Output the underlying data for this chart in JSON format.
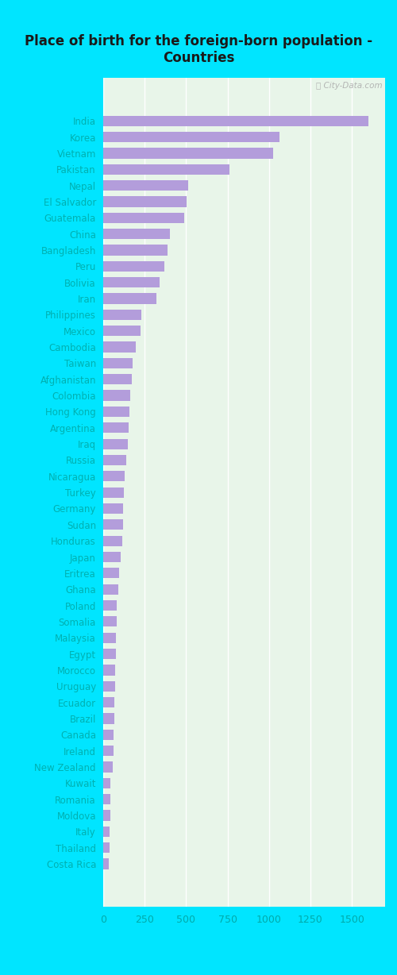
{
  "title": "Place of birth for the foreign-born population -\nCountries",
  "categories": [
    "India",
    "Korea",
    "Vietnam",
    "Pakistan",
    "Nepal",
    "El Salvador",
    "Guatemala",
    "China",
    "Bangladesh",
    "Peru",
    "Bolivia",
    "Iran",
    "Philippines",
    "Mexico",
    "Cambodia",
    "Taiwan",
    "Afghanistan",
    "Colombia",
    "Hong Kong",
    "Argentina",
    "Iraq",
    "Russia",
    "Nicaragua",
    "Turkey",
    "Germany",
    "Sudan",
    "Honduras",
    "Japan",
    "Eritrea",
    "Ghana",
    "Poland",
    "Somalia",
    "Malaysia",
    "Egypt",
    "Morocco",
    "Uruguay",
    "Ecuador",
    "Brazil",
    "Canada",
    "Ireland",
    "New Zealand",
    "Kuwait",
    "Romania",
    "Moldova",
    "Italy",
    "Thailand",
    "Costa Rica"
  ],
  "values": [
    1600,
    1065,
    1025,
    760,
    510,
    505,
    490,
    400,
    390,
    370,
    340,
    320,
    230,
    225,
    195,
    175,
    170,
    165,
    160,
    155,
    150,
    140,
    130,
    125,
    120,
    118,
    115,
    105,
    95,
    90,
    82,
    80,
    78,
    75,
    72,
    70,
    68,
    65,
    62,
    60,
    58,
    45,
    43,
    42,
    40,
    38,
    35
  ],
  "bar_color": "#b39ddb",
  "plot_bg_color": "#e8f5e9",
  "outer_bg_color": "#00e5ff",
  "label_color": "#00b0b0",
  "title_color": "#1a1a1a",
  "xtick_color": "#00aaaa",
  "xlim": [
    0,
    1700
  ],
  "xticks": [
    0,
    250,
    500,
    750,
    1000,
    1250,
    1500
  ],
  "title_fontsize": 12,
  "bar_label_fontsize": 8.5,
  "xtick_fontsize": 9,
  "watermark": "ⓘ City-Data.com"
}
